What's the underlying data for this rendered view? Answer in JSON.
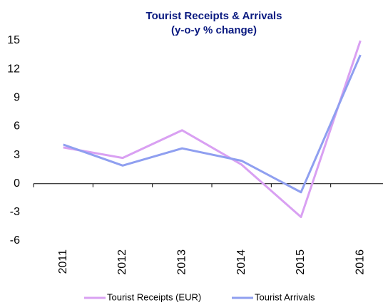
{
  "chart_data": {
    "type": "line",
    "title": "Tourist Receipts & Arrivals",
    "subtitle": "(y-o-y % change)",
    "categories": [
      "2011",
      "2012",
      "2013",
      "2014",
      "2015",
      "2016"
    ],
    "series": [
      {
        "name": "Tourist Receipts (EUR)",
        "color": "#d9a0f2",
        "values": [
          3.8,
          2.7,
          5.6,
          2.0,
          -3.5,
          15.0
        ]
      },
      {
        "name": "Tourist Arrivals",
        "color": "#8f9ff0",
        "values": [
          4.1,
          1.9,
          3.7,
          2.4,
          -0.9,
          13.5
        ]
      }
    ],
    "ylim": [
      -6,
      15
    ],
    "yticks": [
      -6,
      -3,
      0,
      3,
      6,
      9,
      12,
      15
    ],
    "legend": "bottom"
  }
}
